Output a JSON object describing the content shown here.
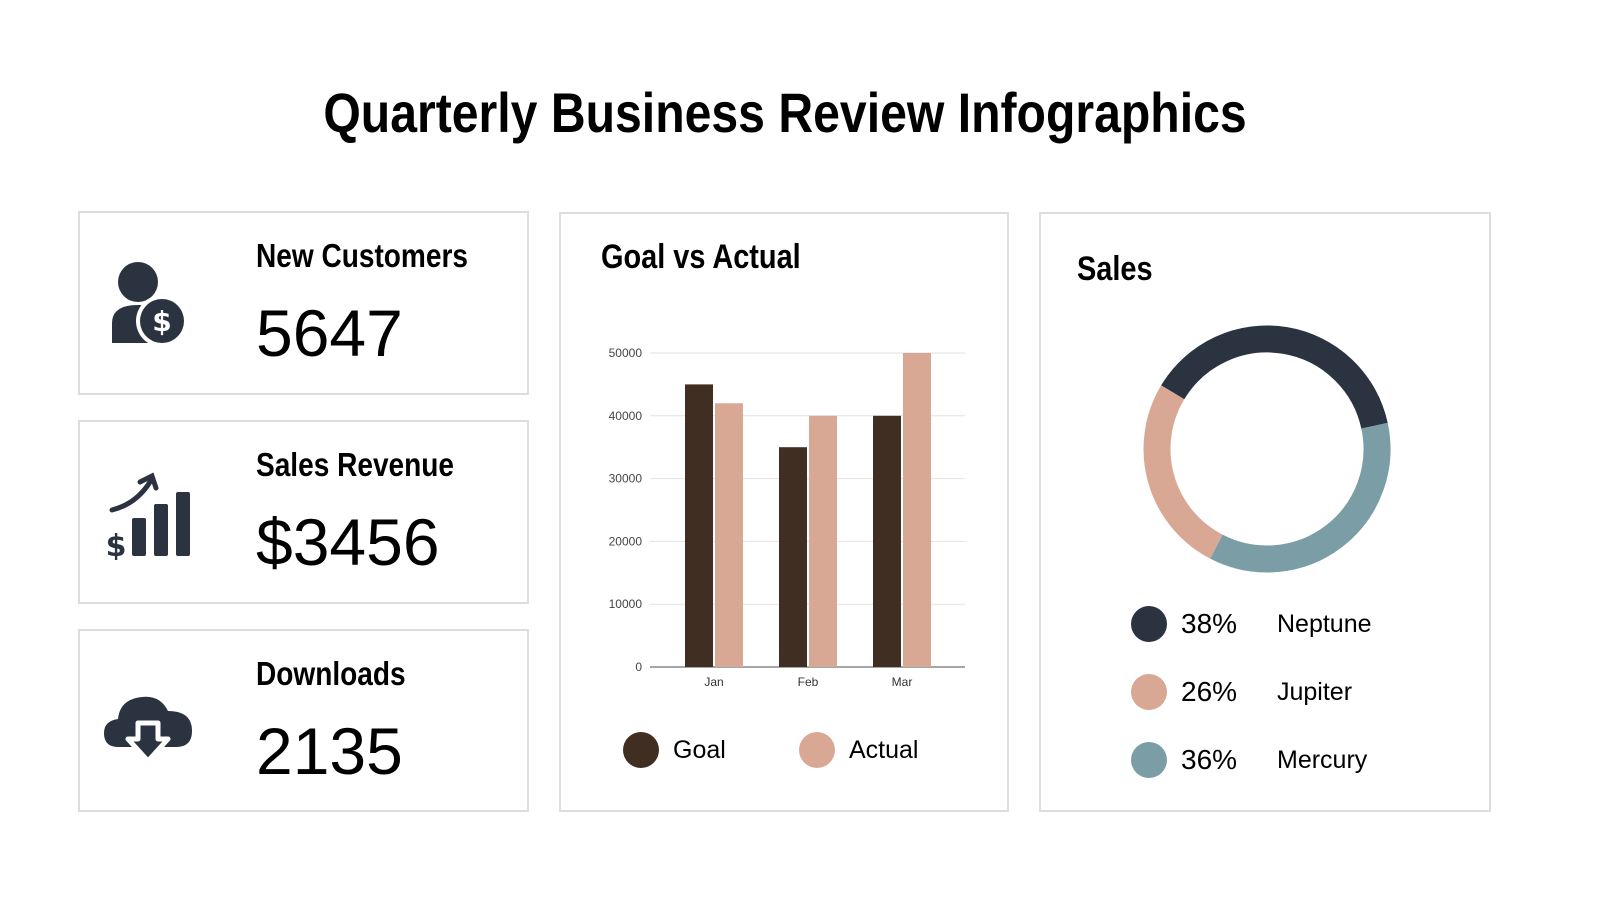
{
  "title": "Quarterly Business Review Infographics",
  "kpis": [
    {
      "label": "New Customers",
      "value": "5647",
      "icon": "customer-dollar-icon"
    },
    {
      "label": "Sales Revenue",
      "value": "$3456",
      "icon": "revenue-growth-icon"
    },
    {
      "label": "Downloads",
      "value": "2135",
      "icon": "cloud-download-icon"
    }
  ],
  "colors": {
    "icon": "#2b3240",
    "goal": "#412e22",
    "actual": "#d8a895",
    "neptune": "#2b3240",
    "jupiter": "#d8a895",
    "mercury": "#7b9ea6"
  },
  "chart_data": [
    {
      "type": "bar",
      "title": "Goal vs Actual",
      "categories": [
        "Jan",
        "Feb",
        "Mar"
      ],
      "series": [
        {
          "name": "Goal",
          "values": [
            45000,
            35000,
            40000
          ]
        },
        {
          "name": "Actual",
          "values": [
            42000,
            40000,
            50000
          ]
        }
      ],
      "ylim": [
        0,
        50000
      ],
      "yticks": [
        "0",
        "10000",
        "20000",
        "30000",
        "40000",
        "50000"
      ],
      "grid": true,
      "legend": "bottom"
    },
    {
      "type": "pie",
      "title": "Sales",
      "donut": true,
      "slices": [
        {
          "name": "Neptune",
          "value": 38,
          "label": "38%"
        },
        {
          "name": "Jupiter",
          "value": 26,
          "label": "26%"
        },
        {
          "name": "Mercury",
          "value": 36,
          "label": "36%"
        }
      ],
      "legend": "bottom"
    }
  ]
}
